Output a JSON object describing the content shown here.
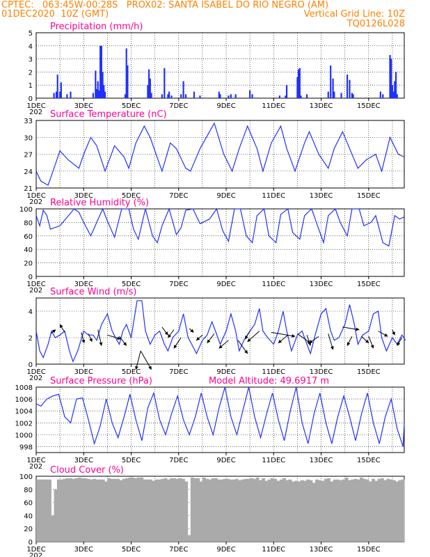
{
  "header": {
    "line1_left": "CPTEC:   063:45W-00:28S   PROX02: SANTA ISABEL DO RIO NEGRO (AM)",
    "line2_left": "01DEC2020  10Z (GMT)",
    "line2_right": "Vertical Grid Line: 10Z",
    "line3_right": "TQ0126L028"
  },
  "colors": {
    "header": "#ff8000",
    "titles": "#ff0090",
    "series": "#2030ff",
    "cloud": "#aaaaaa",
    "arrow": "#000000"
  },
  "x_tick_labels": [
    "1DEC",
    "3DEC",
    "5DEC",
    "7DEC",
    "9DEC",
    "11DEC",
    "13DEC",
    "15DEC"
  ],
  "x_tick_sublabel": "202",
  "chart_data": [
    {
      "type": "bar",
      "title": "Precipitation (mm/h)",
      "ylim": [
        0,
        5
      ],
      "yticks": [
        0,
        1,
        2,
        3,
        4,
        5
      ],
      "x_unit": "days since 01DEC2020 10Z",
      "x": [
        0.75,
        0.85,
        0.9,
        1.0,
        1.05,
        1.3,
        1.45,
        2.4,
        2.5,
        2.55,
        2.6,
        2.65,
        2.7,
        2.75,
        2.8,
        2.85,
        2.9,
        3.75,
        3.8,
        3.85,
        4.7,
        4.75,
        4.8,
        4.85,
        5.3,
        5.4,
        5.55,
        5.6,
        5.7,
        6.1,
        6.2,
        6.3,
        6.65,
        6.9,
        7.7,
        7.75,
        8.1,
        8.2,
        8.4,
        9.0,
        9.1,
        10.25,
        10.5,
        10.55,
        11.0,
        11.05,
        11.1,
        11.15,
        11.4,
        12.3,
        12.4,
        12.5,
        12.55,
        12.85,
        13.1,
        13.2,
        13.3,
        13.35,
        14.5,
        14.6,
        14.9,
        14.95,
        15.0,
        15.05,
        15.1,
        15.15,
        15.2
      ],
      "values": [
        0.4,
        0.5,
        1.8,
        0.5,
        1.2,
        0.3,
        0.5,
        0.4,
        2.1,
        0.7,
        1.3,
        0.6,
        4.0,
        4.0,
        2.0,
        1.0,
        0.5,
        0.3,
        3.8,
        2.5,
        1.0,
        2.2,
        1.5,
        0.4,
        0.3,
        2.3,
        0.3,
        0.5,
        0.2,
        0.3,
        1.3,
        0.3,
        0.5,
        0.2,
        0.5,
        0.3,
        0.2,
        0.3,
        0.3,
        0.6,
        0.3,
        0.2,
        0.2,
        1.0,
        1.6,
        2.2,
        2.3,
        0.2,
        0.3,
        0.5,
        2.5,
        1.5,
        0.5,
        0.4,
        1.8,
        1.4,
        0.4,
        0.3,
        0.5,
        0.3,
        3.3,
        3.0,
        1.0,
        0.5,
        1.3,
        2.0,
        0.3
      ]
    },
    {
      "type": "line",
      "title": "Surface Temperature (nC)",
      "ylim": [
        21,
        33
      ],
      "yticks": [
        21,
        24,
        27,
        30,
        33
      ],
      "x_unit": "days since 01DEC2020 10Z",
      "x": [
        0,
        0.2,
        0.5,
        0.75,
        1.0,
        1.35,
        1.8,
        2.0,
        2.3,
        2.55,
        2.9,
        3.3,
        3.7,
        3.9,
        4.2,
        4.55,
        4.8,
        5.3,
        5.65,
        5.9,
        6.3,
        6.5,
        6.9,
        7.3,
        7.5,
        7.9,
        8.25,
        8.55,
        8.9,
        9.3,
        9.55,
        9.9,
        10.3,
        10.55,
        10.9,
        11.3,
        11.5,
        11.9,
        12.3,
        12.55,
        12.9,
        13.3,
        13.55,
        13.9,
        14.3,
        14.55,
        14.9,
        15.25,
        15.5
      ],
      "values": [
        24.0,
        22.2,
        21.5,
        24.5,
        27.6,
        26.0,
        24.5,
        27.0,
        30.0,
        28.5,
        24.0,
        28.5,
        26.5,
        24.5,
        29.0,
        32.0,
        30.0,
        24.0,
        29.0,
        28.0,
        24.5,
        24.0,
        28.0,
        31.0,
        32.5,
        27.0,
        24.0,
        28.0,
        32.0,
        28.0,
        24.0,
        29.0,
        32.0,
        28.0,
        24.0,
        29.0,
        31.0,
        27.0,
        24.5,
        28.0,
        31.0,
        27.0,
        24.5,
        26.0,
        27.0,
        24.0,
        30.0,
        27.0,
        26.5
      ]
    },
    {
      "type": "line",
      "title": "Relative Humidity (%)",
      "ylim": [
        0,
        100
      ],
      "yticks": [
        0,
        20,
        40,
        60,
        80,
        100
      ],
      "x_unit": "days since 01DEC2020 10Z",
      "x": [
        0,
        0.15,
        0.3,
        0.45,
        0.6,
        1.0,
        1.6,
        1.8,
        2.0,
        2.3,
        2.55,
        2.8,
        3.0,
        3.3,
        3.6,
        3.9,
        4.1,
        4.3,
        4.6,
        4.9,
        5.1,
        5.3,
        5.6,
        5.9,
        6.1,
        6.3,
        6.6,
        6.9,
        7.3,
        7.6,
        7.85,
        8.1,
        8.35,
        8.6,
        8.85,
        9.1,
        9.3,
        9.6,
        9.8,
        10.1,
        10.3,
        10.6,
        10.8,
        11.1,
        11.3,
        11.6,
        11.8,
        12.1,
        12.3,
        12.6,
        12.8,
        13.1,
        13.3,
        13.6,
        13.8,
        14.1,
        14.3,
        14.6,
        14.85,
        15.1,
        15.3,
        15.5
      ],
      "values": [
        90,
        75,
        98,
        90,
        70,
        75,
        100,
        95,
        80,
        60,
        80,
        100,
        82,
        58,
        100,
        100,
        70,
        55,
        100,
        60,
        50,
        75,
        100,
        62,
        72,
        98,
        100,
        78,
        85,
        100,
        68,
        52,
        100,
        100,
        60,
        50,
        90,
        100,
        60,
        50,
        92,
        100,
        65,
        55,
        90,
        100,
        80,
        50,
        90,
        100,
        80,
        60,
        100,
        100,
        75,
        80,
        90,
        50,
        45,
        90,
        85,
        88
      ]
    },
    {
      "type": "line",
      "title": "Surface Wind (m/s)",
      "ylim": [
        0,
        5
      ],
      "yticks": [
        0,
        2,
        4
      ],
      "x_unit": "days since 01DEC2020 10Z",
      "x": [
        0,
        0.15,
        0.3,
        0.5,
        0.65,
        0.8,
        1.0,
        1.2,
        1.4,
        1.55,
        1.75,
        2.0,
        2.2,
        2.4,
        2.55,
        2.75,
        3.0,
        3.2,
        3.4,
        3.5,
        3.65,
        3.8,
        4.0,
        4.25,
        4.45,
        4.6,
        4.8,
        5.0,
        5.2,
        5.4,
        5.55,
        5.75,
        6.0,
        6.2,
        6.4,
        6.55,
        6.75,
        7.0,
        7.2,
        7.4,
        7.55,
        7.75,
        8.0,
        8.2,
        8.4,
        8.55,
        8.75,
        9.0,
        9.2,
        9.4,
        9.55,
        9.75,
        10.0,
        10.2,
        10.4,
        10.55,
        10.75,
        11.0,
        11.2,
        11.4,
        11.55,
        11.75,
        12.0,
        12.2,
        12.4,
        12.55,
        12.75,
        13.0,
        13.2,
        13.4,
        13.55,
        13.75,
        14.0,
        14.2,
        14.4,
        14.55,
        14.75,
        15.0,
        15.2,
        15.4,
        15.55
      ],
      "values": [
        2.5,
        1.0,
        0.5,
        1.5,
        2.5,
        2.0,
        2.2,
        2.5,
        1.0,
        0.2,
        1.0,
        2.5,
        2.2,
        2.2,
        1.8,
        3.0,
        3.8,
        2.5,
        1.8,
        1.5,
        2.5,
        3.0,
        2.0,
        4.8,
        4.8,
        2.5,
        1.5,
        2.2,
        2.5,
        1.5,
        1.0,
        2.0,
        2.5,
        3.8,
        2.0,
        1.5,
        0.8,
        1.8,
        2.2,
        3.2,
        2.5,
        1.5,
        2.5,
        3.8,
        2.5,
        1.0,
        1.8,
        2.5,
        3.0,
        4.2,
        2.5,
        2.0,
        1.5,
        2.5,
        4.0,
        2.5,
        1.0,
        2.2,
        2.5,
        1.5,
        0.8,
        2.2,
        3.8,
        4.2,
        2.5,
        1.8,
        2.0,
        3.0,
        4.5,
        3.0,
        1.5,
        2.2,
        2.5,
        3.8,
        4.0,
        2.0,
        1.0,
        2.0,
        1.5,
        2.2,
        1.8
      ]
    },
    {
      "type": "line",
      "title": "Surface Pressure (hPa)",
      "annotation": "Model Altitude: 49.6917 m",
      "ylim": [
        997,
        1008
      ],
      "yticks": [
        998,
        1000,
        1002,
        1004,
        1006,
        1008
      ],
      "x_unit": "days since 01DEC2020 10Z",
      "x": [
        0,
        0.2,
        0.45,
        0.7,
        0.95,
        1.2,
        1.45,
        1.7,
        1.95,
        2.2,
        2.45,
        2.7,
        2.95,
        3.2,
        3.45,
        3.7,
        3.95,
        4.2,
        4.45,
        4.7,
        4.95,
        5.2,
        5.45,
        5.7,
        5.95,
        6.2,
        6.45,
        6.7,
        6.95,
        7.2,
        7.45,
        7.7,
        7.95,
        8.2,
        8.45,
        8.7,
        8.95,
        9.2,
        9.45,
        9.7,
        9.95,
        10.2,
        10.45,
        10.7,
        10.95,
        11.2,
        11.45,
        11.7,
        11.95,
        12.2,
        12.45,
        12.7,
        12.95,
        13.2,
        13.45,
        13.7,
        13.95,
        14.2,
        14.45,
        14.7,
        14.95,
        15.2,
        15.45,
        15.5
      ],
      "values": [
        1005.2,
        1004.8,
        1006.0,
        1006.5,
        1006.8,
        1003.0,
        1002.0,
        1006.0,
        1006.2,
        1002.5,
        998.5,
        1001.5,
        1006.0,
        1002.0,
        999.5,
        1003.0,
        1006.8,
        1002.5,
        999.0,
        1004.5,
        1007.0,
        1002.5,
        1000.0,
        1003.5,
        1006.5,
        1002.5,
        1000.0,
        1003.0,
        1007.0,
        1003.0,
        1000.0,
        1004.5,
        1008.0,
        1003.0,
        1000.0,
        1004.0,
        1008.0,
        1003.0,
        999.5,
        1003.5,
        1007.0,
        1002.5,
        999.0,
        1004.0,
        1008.0,
        1002.0,
        998.5,
        1003.5,
        1007.0,
        1002.0,
        998.5,
        1003.0,
        1006.5,
        1003.0,
        999.0,
        1003.5,
        1007.0,
        1002.0,
        998.5,
        1003.0,
        1006.0,
        1001.0,
        998.0,
        1002.0
      ]
    },
    {
      "type": "bar",
      "title": "Cloud Cover (%)",
      "ylim": [
        0,
        100
      ],
      "yticks": [
        0,
        20,
        40,
        60,
        80,
        100
      ],
      "x_unit": "days since 01DEC2020 10Z",
      "x_start": 0,
      "x_step": 0.125,
      "values": [
        95,
        95,
        95,
        95,
        95,
        40,
        80,
        95,
        95,
        96,
        97,
        97,
        96,
        97,
        98,
        97,
        97,
        96,
        95,
        96,
        95,
        95,
        95,
        92,
        97,
        96,
        96,
        96,
        94,
        96,
        97,
        98,
        98,
        97,
        98,
        98,
        95,
        95,
        95,
        93,
        95,
        95,
        96,
        97,
        95,
        97,
        97,
        96,
        97,
        96,
        92,
        10,
        98,
        97,
        97,
        92,
        98,
        96,
        95,
        97,
        97,
        95,
        95,
        96,
        96,
        95,
        95,
        96,
        94,
        95,
        96,
        96,
        97,
        96,
        98,
        94,
        97,
        93,
        95,
        97,
        96,
        93,
        95,
        97,
        94,
        95,
        92,
        93,
        92,
        94,
        93,
        95,
        94,
        90,
        95,
        94,
        93,
        96,
        97,
        92,
        95,
        95,
        94,
        95,
        98,
        94,
        95,
        96,
        95,
        98,
        96,
        95,
        92,
        96,
        93,
        96,
        97,
        94,
        96,
        95,
        94,
        92,
        94,
        95
      ]
    }
  ],
  "wind_arrows": [
    {
      "x": 0.6,
      "y": 2.3,
      "dx": 0.22,
      "dy": 0.3
    },
    {
      "x": 1.2,
      "y": 2.4,
      "dx": -0.2,
      "dy": 0.6
    },
    {
      "x": 1.9,
      "y": 2.4,
      "dx": 0.12,
      "dy": -0.8
    },
    {
      "x": 2.2,
      "y": 2.3,
      "dx": 0.15,
      "dy": -0.6
    },
    {
      "x": 2.6,
      "y": 2.6,
      "dx": 0.15,
      "dy": -1.2
    },
    {
      "x": 3.0,
      "y": 2.2,
      "dx": 0.55,
      "dy": -0.3
    },
    {
      "x": 3.5,
      "y": 2.1,
      "dx": 0.3,
      "dy": -0.7
    },
    {
      "x": 4.4,
      "y": 1.0,
      "dx": -0.2,
      "dy": -1.4
    },
    {
      "x": 4.4,
      "y": 1.0,
      "dx": 0.45,
      "dy": -1.4
    },
    {
      "x": 5.3,
      "y": 2.8,
      "dx": 0.25,
      "dy": -0.6
    },
    {
      "x": 5.8,
      "y": 2.6,
      "dx": -0.25,
      "dy": -0.6
    },
    {
      "x": 6.1,
      "y": 2.0,
      "dx": -0.3,
      "dy": -0.8
    },
    {
      "x": 6.45,
      "y": 2.7,
      "dx": 0.18,
      "dy": -0.3
    },
    {
      "x": 7.0,
      "y": 2.2,
      "dx": -0.25,
      "dy": -0.4
    },
    {
      "x": 7.5,
      "y": 2.3,
      "dx": -0.3,
      "dy": -0.7
    },
    {
      "x": 8.1,
      "y": 1.8,
      "dx": -0.4,
      "dy": -0.6
    },
    {
      "x": 8.5,
      "y": 1.8,
      "dx": 0.4,
      "dy": -1.0
    },
    {
      "x": 9.0,
      "y": 2.5,
      "dx": -0.2,
      "dy": -0.6
    },
    {
      "x": 9.4,
      "y": 2.5,
      "dx": -0.5,
      "dy": -0.8
    },
    {
      "x": 9.9,
      "y": 2.4,
      "dx": 1.0,
      "dy": -0.3
    },
    {
      "x": 10.6,
      "y": 2.2,
      "dx": -0.4,
      "dy": -0.6
    },
    {
      "x": 11.0,
      "y": 2.3,
      "dx": 0.55,
      "dy": -0.7
    },
    {
      "x": 11.4,
      "y": 2.2,
      "dx": 0.15,
      "dy": -0.8
    },
    {
      "x": 11.9,
      "y": 2.1,
      "dx": -0.4,
      "dy": -0.5
    },
    {
      "x": 12.3,
      "y": 2.3,
      "dx": 0.2,
      "dy": -1.2
    },
    {
      "x": 12.9,
      "y": 2.8,
      "dx": 0.7,
      "dy": -0.2
    },
    {
      "x": 13.3,
      "y": 2.1,
      "dx": -0.2,
      "dy": -0.7
    },
    {
      "x": 13.7,
      "y": 2.1,
      "dx": 0.3,
      "dy": -0.5
    },
    {
      "x": 14.0,
      "y": 2.1,
      "dx": 0.2,
      "dy": -0.9
    },
    {
      "x": 14.4,
      "y": 2.5,
      "dx": 0.4,
      "dy": -0.4
    },
    {
      "x": 15.0,
      "y": 2.6,
      "dx": 0.1,
      "dy": -0.4
    },
    {
      "x": 15.4,
      "y": 2.0,
      "dx": -0.2,
      "dy": -0.6
    }
  ]
}
